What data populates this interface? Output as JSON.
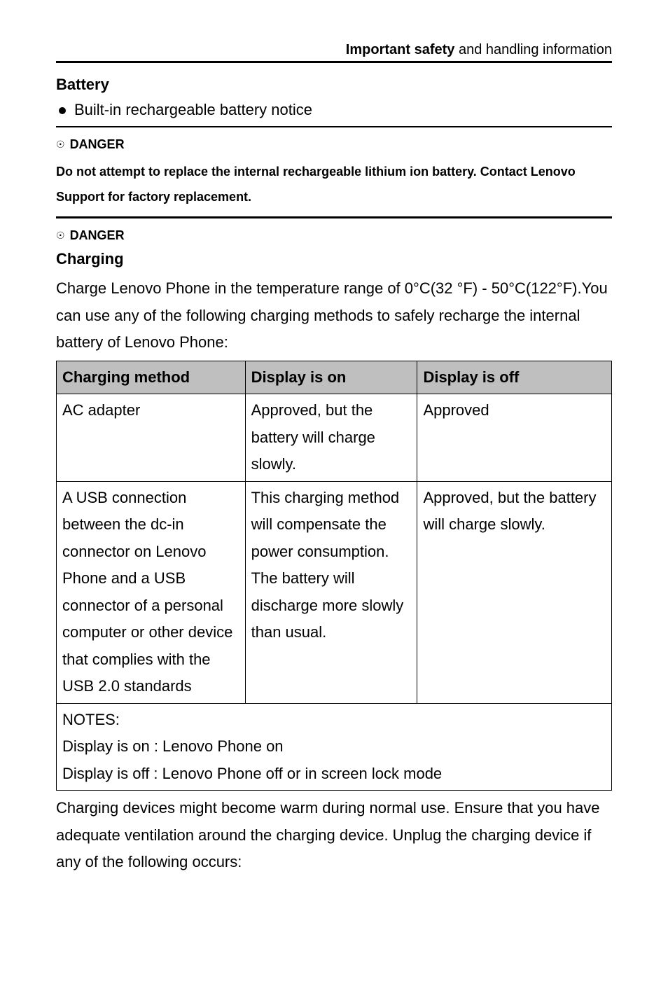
{
  "colors": {
    "text": "#000000",
    "background": "#ffffff",
    "table_header_bg": "#bfbfbf",
    "border": "#000000"
  },
  "typography": {
    "body_fontsize_pt": 16,
    "header_fontsize_pt": 15,
    "danger_fontsize_pt": 13,
    "font_family": "Arial"
  },
  "header": {
    "bold_part": "Important safety",
    "rest": " and handling information"
  },
  "battery": {
    "title": "Battery",
    "bullet": "Built-in rechargeable battery notice"
  },
  "danger1": {
    "icon": "☉",
    "label": "DANGER",
    "text": "Do not attempt to replace the internal rechargeable lithium ion battery. Contact Lenovo Support for factory replacement."
  },
  "danger2": {
    "icon": "☉",
    "label": "DANGER"
  },
  "charging": {
    "title": "Charging",
    "intro": "Charge Lenovo Phone in the temperature range of 0°C(32 °F) - 50°C(122°F).You can use any of the following charging methods to safely recharge the internal battery of Lenovo Phone:",
    "table": {
      "column_widths_pct": [
        34,
        31,
        35
      ],
      "header_bg": "#bfbfbf",
      "border_color": "#000000",
      "columns": [
        "Charging method",
        "Display is on",
        "Display is off"
      ],
      "rows": [
        {
          "method": "AC adapter",
          "on": "Approved, but the battery will charge slowly.",
          "off": "Approved"
        },
        {
          "method": "A USB connection between the dc-in connector on Lenovo Phone and a USB connector of a personal computer or other device that complies with the USB 2.0 standards",
          "on": "This charging method will compensate the power consumption. The battery will discharge more slowly than usual.",
          "off": "Approved, but the battery will charge slowly."
        }
      ],
      "notes_title": "NOTES:",
      "notes_line1": "Display is on : Lenovo Phone on",
      "notes_line2": "Display is off : Lenovo Phone off or in screen lock mode"
    },
    "after": "Charging devices might become warm during normal use. Ensure that you have adequate ventilation around the charging device. Unplug the charging device if any of the following occurs:"
  }
}
